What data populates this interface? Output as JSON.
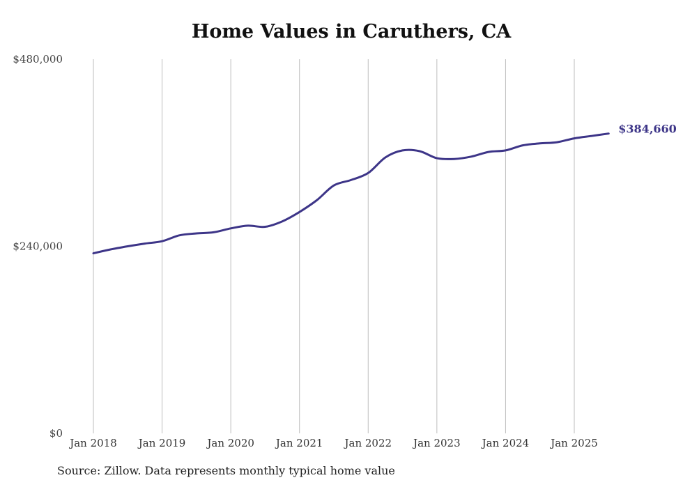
{
  "chart_data": {
    "type": "line",
    "title": "Home Values in Caruthers, CA",
    "xlabel": "",
    "ylabel": "",
    "ylim": [
      0,
      480000
    ],
    "y_ticks": [
      "$0",
      "$240,000",
      "$480,000"
    ],
    "y_tick_values": [
      0,
      240000,
      480000
    ],
    "x_ticks": [
      "Jan 2018",
      "Jan 2019",
      "Jan 2020",
      "Jan 2021",
      "Jan 2022",
      "Jan 2023",
      "Jan 2024",
      "Jan 2025"
    ],
    "x_tick_values": [
      2018,
      2019,
      2020,
      2021,
      2022,
      2023,
      2024,
      2025
    ],
    "grid": "vertical",
    "series": [
      {
        "color": "#3d3588",
        "end_label": "$384,660",
        "points": [
          [
            2018.0,
            231000
          ],
          [
            2018.25,
            236000
          ],
          [
            2018.5,
            240000
          ],
          [
            2018.75,
            243500
          ],
          [
            2019.0,
            246500
          ],
          [
            2019.25,
            254000
          ],
          [
            2019.5,
            256500
          ],
          [
            2019.75,
            258000
          ],
          [
            2020.0,
            263000
          ],
          [
            2020.25,
            266500
          ],
          [
            2020.5,
            265000
          ],
          [
            2020.75,
            272000
          ],
          [
            2021.0,
            284000
          ],
          [
            2021.25,
            299000
          ],
          [
            2021.5,
            318000
          ],
          [
            2021.75,
            325000
          ],
          [
            2022.0,
            334000
          ],
          [
            2022.25,
            354000
          ],
          [
            2022.5,
            363000
          ],
          [
            2022.75,
            362000
          ],
          [
            2023.0,
            353000
          ],
          [
            2023.25,
            352000
          ],
          [
            2023.5,
            355000
          ],
          [
            2023.75,
            361000
          ],
          [
            2024.0,
            363000
          ],
          [
            2024.25,
            369500
          ],
          [
            2024.5,
            372000
          ],
          [
            2024.75,
            373500
          ],
          [
            2025.0,
            378500
          ],
          [
            2025.25,
            381500
          ],
          [
            2025.5,
            384660
          ]
        ]
      }
    ]
  },
  "footer": {
    "source": "Source: Zillow. Data represents monthly typical home value"
  }
}
